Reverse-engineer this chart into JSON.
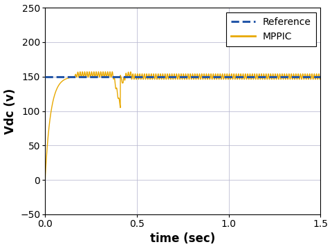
{
  "title": "",
  "xlabel": "time (sec)",
  "ylabel": "Vdc (v)",
  "xlim": [
    0,
    1.5
  ],
  "ylim": [
    -50,
    250
  ],
  "yticks": [
    -50,
    0,
    50,
    100,
    150,
    200,
    250
  ],
  "xticks": [
    0,
    0.5,
    1.0,
    1.5
  ],
  "reference_value": 150,
  "reference_color": "#2457a8",
  "mppic_color": "#E8A800",
  "rise_tau": 0.03,
  "settle_value": 153,
  "disturbance_time": 0.42,
  "disturbance_min": 141,
  "ripple_amplitude": 4.0,
  "ripple_frequency": 80,
  "legend_labels": [
    "Reference",
    "MPPIC"
  ],
  "background_color": "#ffffff",
  "grid_color": "#b8b8d0",
  "figsize": [
    4.8,
    3.6
  ],
  "dpi": 100
}
